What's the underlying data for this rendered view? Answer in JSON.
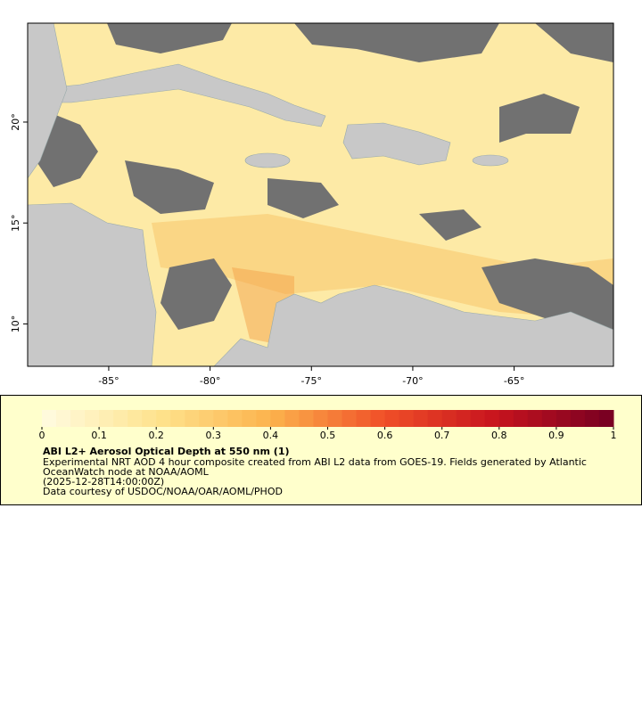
{
  "map": {
    "xlim": [
      -89,
      -60.1
    ],
    "ylim": [
      7.9,
      24.9
    ],
    "x_ticks": [
      {
        "value": -85,
        "label": "-85°"
      },
      {
        "value": -80,
        "label": "-80°"
      },
      {
        "value": -75,
        "label": "-75°"
      },
      {
        "value": -70,
        "label": "-70°"
      },
      {
        "value": -65,
        "label": "-65°"
      }
    ],
    "y_ticks": [
      {
        "value": 10,
        "label": "10°"
      },
      {
        "value": 15,
        "label": "15°"
      },
      {
        "value": 20,
        "label": "20°"
      }
    ]
  },
  "legend": {
    "range": [
      0,
      1
    ],
    "ticks": [
      0,
      0.1,
      0.2,
      0.3,
      0.4,
      0.5,
      0.6,
      0.7,
      0.8,
      0.9,
      1
    ],
    "title": "ABI L2+ Aerosol Optical Depth at 550 nm (1)",
    "lines": [
      "Experimental NRT AOD 4 hour composite created from ABI L2 data from GOES-19. Fields generated by Atlantic",
      "OceanWatch node at NOAA/AOML",
      "(2025-12-28T14:00:00Z)",
      "Data courtesy of USDOC/NOAA/OAR/AOML/PHOD"
    ]
  }
}
